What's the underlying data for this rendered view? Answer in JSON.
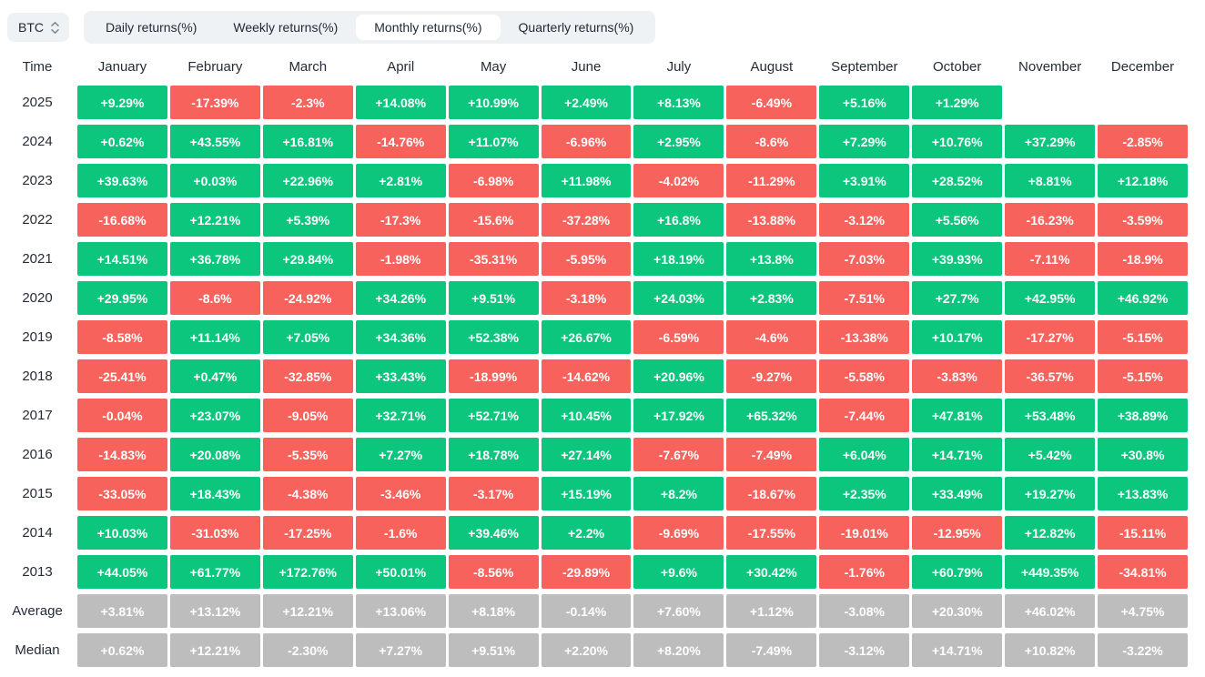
{
  "controls": {
    "symbol_select": {
      "label": "BTC"
    },
    "tabs": [
      {
        "name": "tab-daily-returns",
        "label": "Daily returns(%)",
        "active": false
      },
      {
        "name": "tab-weekly-returns",
        "label": "Weekly returns(%)",
        "active": false
      },
      {
        "name": "tab-monthly-returns",
        "label": "Monthly returns(%)",
        "active": true
      },
      {
        "name": "tab-quarterly-returns",
        "label": "Quarterly returns(%)",
        "active": false
      }
    ]
  },
  "chart_data": {
    "type": "heatmap",
    "time_header": "Time",
    "columns": [
      "January",
      "February",
      "March",
      "April",
      "May",
      "June",
      "July",
      "August",
      "September",
      "October",
      "November",
      "December"
    ],
    "rows": [
      {
        "label": "2025",
        "kind": "year",
        "values": [
          "+9.29%",
          "-17.39%",
          "-2.3%",
          "+14.08%",
          "+10.99%",
          "+2.49%",
          "+8.13%",
          "-6.49%",
          "+5.16%",
          "+1.29%",
          "",
          ""
        ]
      },
      {
        "label": "2024",
        "kind": "year",
        "values": [
          "+0.62%",
          "+43.55%",
          "+16.81%",
          "-14.76%",
          "+11.07%",
          "-6.96%",
          "+2.95%",
          "-8.6%",
          "+7.29%",
          "+10.76%",
          "+37.29%",
          "-2.85%"
        ]
      },
      {
        "label": "2023",
        "kind": "year",
        "values": [
          "+39.63%",
          "+0.03%",
          "+22.96%",
          "+2.81%",
          "-6.98%",
          "+11.98%",
          "-4.02%",
          "-11.29%",
          "+3.91%",
          "+28.52%",
          "+8.81%",
          "+12.18%"
        ]
      },
      {
        "label": "2022",
        "kind": "year",
        "values": [
          "-16.68%",
          "+12.21%",
          "+5.39%",
          "-17.3%",
          "-15.6%",
          "-37.28%",
          "+16.8%",
          "-13.88%",
          "-3.12%",
          "+5.56%",
          "-16.23%",
          "-3.59%"
        ]
      },
      {
        "label": "2021",
        "kind": "year",
        "values": [
          "+14.51%",
          "+36.78%",
          "+29.84%",
          "-1.98%",
          "-35.31%",
          "-5.95%",
          "+18.19%",
          "+13.8%",
          "-7.03%",
          "+39.93%",
          "-7.11%",
          "-18.9%"
        ]
      },
      {
        "label": "2020",
        "kind": "year",
        "values": [
          "+29.95%",
          "-8.6%",
          "-24.92%",
          "+34.26%",
          "+9.51%",
          "-3.18%",
          "+24.03%",
          "+2.83%",
          "-7.51%",
          "+27.7%",
          "+42.95%",
          "+46.92%"
        ]
      },
      {
        "label": "2019",
        "kind": "year",
        "values": [
          "-8.58%",
          "+11.14%",
          "+7.05%",
          "+34.36%",
          "+52.38%",
          "+26.67%",
          "-6.59%",
          "-4.6%",
          "-13.38%",
          "+10.17%",
          "-17.27%",
          "-5.15%"
        ]
      },
      {
        "label": "2018",
        "kind": "year",
        "values": [
          "-25.41%",
          "+0.47%",
          "-32.85%",
          "+33.43%",
          "-18.99%",
          "-14.62%",
          "+20.96%",
          "-9.27%",
          "-5.58%",
          "-3.83%",
          "-36.57%",
          "-5.15%"
        ]
      },
      {
        "label": "2017",
        "kind": "year",
        "values": [
          "-0.04%",
          "+23.07%",
          "-9.05%",
          "+32.71%",
          "+52.71%",
          "+10.45%",
          "+17.92%",
          "+65.32%",
          "-7.44%",
          "+47.81%",
          "+53.48%",
          "+38.89%"
        ]
      },
      {
        "label": "2016",
        "kind": "year",
        "values": [
          "-14.83%",
          "+20.08%",
          "-5.35%",
          "+7.27%",
          "+18.78%",
          "+27.14%",
          "-7.67%",
          "-7.49%",
          "+6.04%",
          "+14.71%",
          "+5.42%",
          "+30.8%"
        ]
      },
      {
        "label": "2015",
        "kind": "year",
        "values": [
          "-33.05%",
          "+18.43%",
          "-4.38%",
          "-3.46%",
          "-3.17%",
          "+15.19%",
          "+8.2%",
          "-18.67%",
          "+2.35%",
          "+33.49%",
          "+19.27%",
          "+13.83%"
        ]
      },
      {
        "label": "2014",
        "kind": "year",
        "values": [
          "+10.03%",
          "-31.03%",
          "-17.25%",
          "-1.6%",
          "+39.46%",
          "+2.2%",
          "-9.69%",
          "-17.55%",
          "-19.01%",
          "-12.95%",
          "+12.82%",
          "-15.11%"
        ]
      },
      {
        "label": "2013",
        "kind": "year",
        "values": [
          "+44.05%",
          "+61.77%",
          "+172.76%",
          "+50.01%",
          "-8.56%",
          "-29.89%",
          "+9.6%",
          "+30.42%",
          "-1.76%",
          "+60.79%",
          "+449.35%",
          "-34.81%"
        ]
      },
      {
        "label": "Average",
        "kind": "summary",
        "values": [
          "+3.81%",
          "+13.12%",
          "+12.21%",
          "+13.06%",
          "+8.18%",
          "-0.14%",
          "+7.60%",
          "+1.12%",
          "-3.08%",
          "+20.30%",
          "+46.02%",
          "+4.75%"
        ]
      },
      {
        "label": "Median",
        "kind": "summary",
        "values": [
          "+0.62%",
          "+12.21%",
          "-2.30%",
          "+7.27%",
          "+9.51%",
          "+2.20%",
          "+8.20%",
          "-7.49%",
          "-3.12%",
          "+14.71%",
          "+10.82%",
          "-3.22%"
        ]
      }
    ]
  },
  "colors": {
    "positive": "#0CC67E",
    "negative": "#F8625C",
    "summary": "#BDBDBD",
    "tab_bar_bg": "#EFF2F5",
    "active_tab_bg": "#FFFFFF",
    "text_dark": "#1E2733",
    "cell_text": "#FFFFFF"
  }
}
